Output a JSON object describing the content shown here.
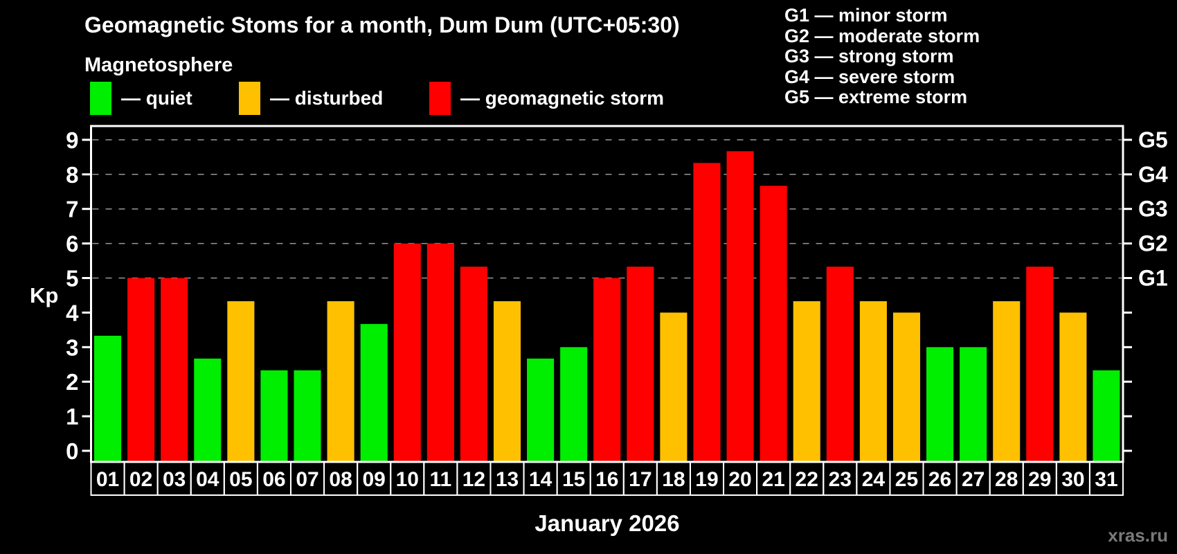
{
  "title": "Geomagnetic Stoms for a month, Dum Dum (UTC+05:30)",
  "subtitle": "Magnetosphere",
  "legend": {
    "items": [
      {
        "key": "quiet",
        "label": "— quiet",
        "color": "#00ee00"
      },
      {
        "key": "disturbed",
        "label": "— disturbed",
        "color": "#ffc000"
      },
      {
        "key": "storm",
        "label": "— geomagnetic storm",
        "color": "#ff0000"
      }
    ]
  },
  "g_legend": [
    "G1 — minor storm",
    "G2 — moderate storm",
    "G3 — strong storm",
    "G4 — severe storm",
    "G5 — extreme storm"
  ],
  "watermark": "xras.ru",
  "colors": {
    "background": "#000000",
    "axis": "#ffffff",
    "grid": "#999999",
    "text": "#ffffff",
    "watermark": "#7a7a7a"
  },
  "chart_data": {
    "type": "bar",
    "title": "Geomagnetic Stoms for a month, Dum Dum (UTC+05:30)",
    "xlabel": "January 2026",
    "ylabel": "Kp",
    "ylim": [
      0,
      9
    ],
    "yticks": [
      0,
      1,
      2,
      3,
      4,
      5,
      6,
      7,
      8,
      9
    ],
    "grid": "dashed horizontal lines at Kp 5-9 only",
    "legend_position": "top-left",
    "right_axis": [
      {
        "label": "G1",
        "kp": 5
      },
      {
        "label": "G2",
        "kp": 6
      },
      {
        "label": "G3",
        "kp": 7
      },
      {
        "label": "G4",
        "kp": 8
      },
      {
        "label": "G5",
        "kp": 9
      }
    ],
    "categories": [
      "01",
      "02",
      "03",
      "04",
      "05",
      "06",
      "07",
      "08",
      "09",
      "10",
      "11",
      "12",
      "13",
      "14",
      "15",
      "16",
      "17",
      "18",
      "19",
      "20",
      "21",
      "22",
      "23",
      "24",
      "25",
      "26",
      "27",
      "28",
      "29",
      "30",
      "31"
    ],
    "values": [
      3.33,
      5.0,
      5.0,
      2.67,
      4.33,
      2.33,
      2.33,
      4.33,
      3.67,
      6.0,
      6.0,
      5.33,
      4.33,
      2.67,
      3.0,
      5.0,
      5.33,
      4.0,
      8.33,
      8.67,
      7.67,
      4.33,
      5.33,
      4.33,
      4.0,
      3.0,
      3.0,
      4.33,
      5.33,
      4.0,
      2.33
    ],
    "statuses": [
      "quiet",
      "storm",
      "storm",
      "quiet",
      "disturbed",
      "quiet",
      "quiet",
      "disturbed",
      "quiet",
      "storm",
      "storm",
      "storm",
      "disturbed",
      "quiet",
      "quiet",
      "storm",
      "storm",
      "disturbed",
      "storm",
      "storm",
      "storm",
      "disturbed",
      "storm",
      "disturbed",
      "disturbed",
      "quiet",
      "quiet",
      "disturbed",
      "storm",
      "disturbed",
      "quiet"
    ]
  }
}
